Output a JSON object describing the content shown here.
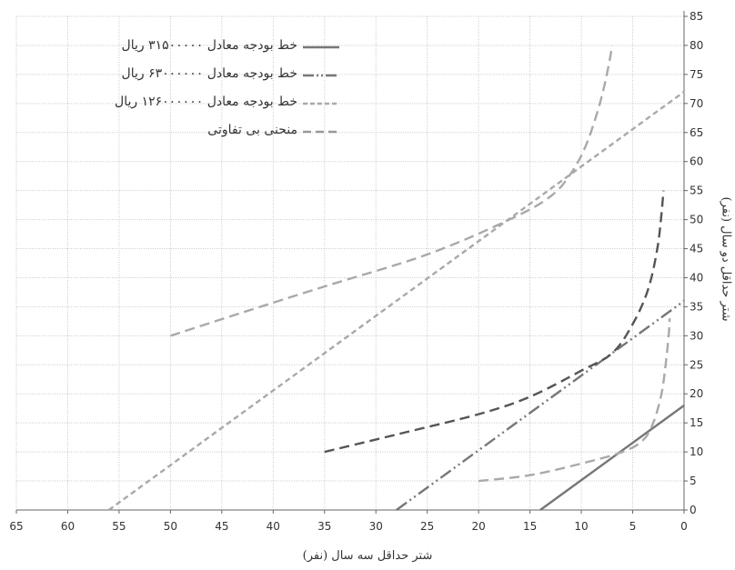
{
  "chart_data": {
    "type": "line",
    "xlabel": "شتر حداقل سه سال (نفر)",
    "ylabel": "شتر حداقل دو سال (نفر)",
    "xlim": [
      65,
      0
    ],
    "ylim": [
      0,
      85
    ],
    "x_ticks": [
      65,
      60,
      55,
      50,
      45,
      40,
      35,
      30,
      25,
      20,
      15,
      10,
      5,
      0
    ],
    "y_ticks": [
      0,
      5,
      10,
      15,
      20,
      25,
      30,
      35,
      40,
      45,
      50,
      55,
      60,
      65,
      70,
      75,
      80,
      85
    ],
    "grid": true,
    "x_reversed": true,
    "y_axis_side": "right",
    "legend_position": "top-left",
    "series": [
      {
        "name": "خط بودجه معادل ۳۱۵۰۰۰۰۰ ریال",
        "style": "solid",
        "color": "#777777",
        "x": [
          14,
          0
        ],
        "y": [
          0,
          18
        ]
      },
      {
        "name": "خط بودجه معادل ۶۳۰۰۰۰۰۰ ریال",
        "style": "dashdotdot",
        "color": "#777777",
        "x": [
          28,
          0
        ],
        "y": [
          0,
          36
        ]
      },
      {
        "name": "خط بودجه معادل ۱۲۶۰۰۰۰۰۰ ریال",
        "style": "dashed-short",
        "color": "#a9a9a9",
        "x": [
          56,
          0
        ],
        "y": [
          0,
          72
        ]
      },
      {
        "name": "منحنی بی تفاوتی",
        "style": "dashed",
        "color": "#9a9a9a",
        "curves": [
          {
            "color": "#a9a9a9",
            "x": [
              20,
              15,
              10,
              6,
              4,
              3,
              2.2,
              1.8,
              1.5,
              1.4
            ],
            "y": [
              5,
              6,
              8,
              10,
              12,
              15,
              20,
              25,
              30,
              33
            ]
          },
          {
            "color": "#555555",
            "x": [
              35,
              28,
              20,
              15,
              10,
              7,
              5,
              3.5,
              2.6,
              2.2,
              2.0
            ],
            "y": [
              10,
              13,
              16.5,
              19.5,
              24,
              27,
              32,
              38,
              45,
              51,
              55
            ]
          },
          {
            "color": "#a9a9a9",
            "x": [
              50,
              43,
              35,
              25,
              17,
              13,
              11,
              9.5,
              8.2,
              7.4,
              7.0
            ],
            "y": [
              30,
              34,
              38.5,
              44,
              50,
              54,
              58,
              63,
              70,
              76,
              80
            ]
          }
        ]
      }
    ]
  }
}
